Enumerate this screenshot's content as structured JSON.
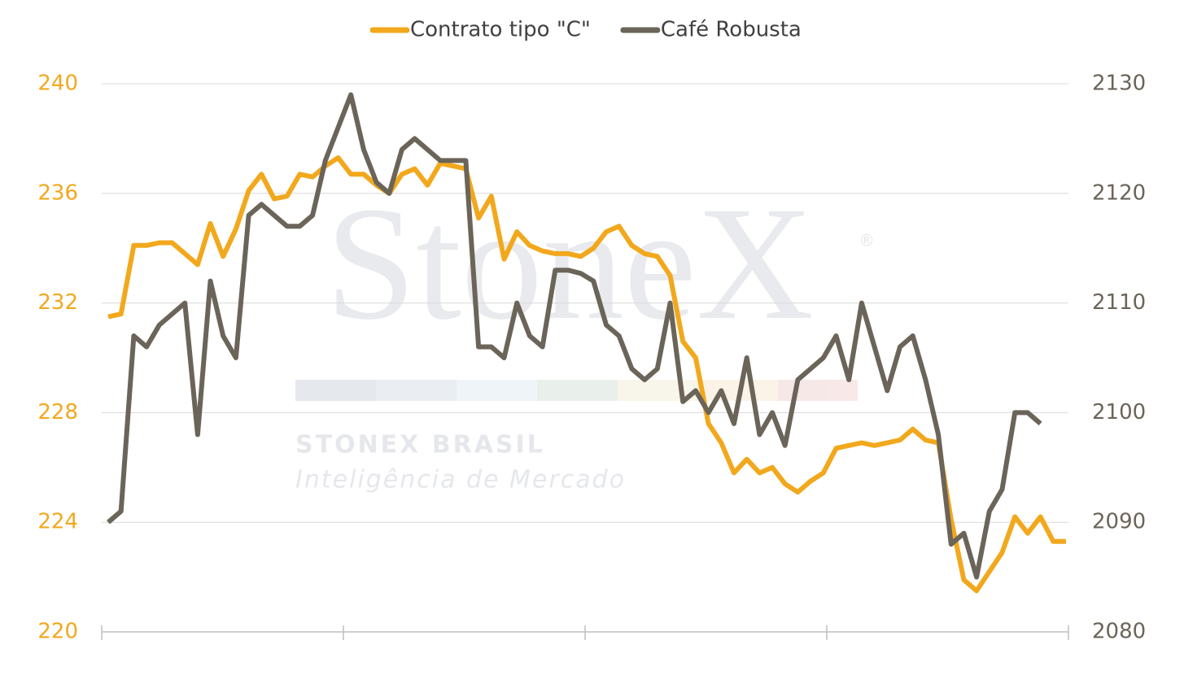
{
  "chart_data": {
    "type": "line",
    "watermark": {
      "brand": "StoneX",
      "mark": "®",
      "subtitle": "STONEX BRASIL",
      "tagline": "Inteligência de Mercado"
    },
    "categories": [
      null,
      null,
      null,
      null,
      null,
      null,
      null,
      null,
      null,
      null,
      null,
      null,
      null,
      null,
      null,
      null,
      null,
      null,
      null,
      null,
      null,
      null,
      null,
      null,
      null,
      null,
      null,
      null,
      null,
      null,
      null,
      null,
      null,
      null,
      null,
      null,
      null,
      null,
      null,
      null,
      null,
      null,
      null,
      null,
      null,
      null,
      null,
      null,
      null,
      null,
      null,
      null,
      null,
      null,
      null,
      null,
      null,
      null,
      null,
      null,
      null,
      null,
      null,
      null,
      null,
      null,
      null,
      null,
      null,
      null,
      null,
      null,
      null,
      null,
      null,
      null
    ],
    "series": [
      {
        "name": "Contrato tipo \"C\"",
        "color": "#f2a81d",
        "axis": "y",
        "values": [
          231.5,
          231.6,
          234.1,
          234.1,
          234.2,
          234.2,
          233.8,
          233.4,
          234.9,
          233.7,
          234.7,
          236.1,
          236.7,
          235.8,
          235.9,
          236.7,
          236.6,
          237.0,
          237.3,
          236.7,
          236.7,
          236.3,
          236.0,
          236.7,
          236.9,
          236.3,
          237.1,
          237.0,
          236.9,
          235.1,
          235.9,
          233.6,
          234.6,
          234.1,
          233.9,
          233.8,
          233.8,
          233.7,
          234.0,
          234.6,
          234.8,
          234.1,
          233.8,
          233.7,
          233.0,
          230.6,
          230.0,
          227.6,
          226.9,
          225.8,
          226.3,
          225.8,
          226.0,
          225.4,
          225.1,
          225.5,
          225.8,
          226.7,
          226.8,
          226.9,
          226.8,
          226.9,
          227.0,
          227.4,
          227.0,
          226.9,
          224.1,
          221.9,
          221.5,
          222.2,
          222.9,
          224.2,
          223.6,
          224.2,
          223.3,
          223.3
        ]
      },
      {
        "name": "Café Robusta",
        "color": "#6b6459",
        "axis": "y2",
        "values": [
          2090,
          2091,
          2107,
          2106,
          2108,
          2109,
          2110,
          2098,
          2112,
          2107,
          2105,
          2118,
          2119,
          2118,
          2117,
          2117,
          2118,
          2123,
          2126,
          2129,
          2124,
          2121,
          2120,
          2124,
          2125,
          2124,
          2123,
          2123,
          2123,
          2106,
          2106,
          2105,
          2110,
          2107,
          2106,
          2113,
          2113,
          2112.7,
          2112,
          2108,
          2107,
          2104,
          2103,
          2104,
          2110,
          2101,
          2102,
          2100,
          2102,
          2099,
          2105,
          2098,
          2100,
          2097,
          2103,
          2104,
          2105,
          2107,
          2103,
          2110,
          2106,
          2102,
          2106,
          2107,
          2103,
          2098,
          2088,
          2089,
          2085,
          2091,
          2093,
          2100,
          2100,
          2099,
          null,
          null
        ]
      }
    ],
    "ylim": [
      220,
      240
    ],
    "yticks": [
      220,
      224,
      228,
      232,
      236,
      240
    ],
    "y2lim": [
      2080,
      2130
    ],
    "y2ticks": [
      2080,
      2090,
      2100,
      2110,
      2120,
      2130
    ],
    "grid": true,
    "legend": "top"
  }
}
